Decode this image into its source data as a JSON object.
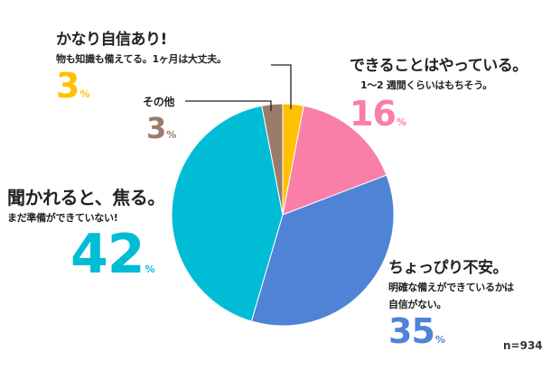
{
  "chart_data": {
    "type": "pie",
    "title": "",
    "slices": [
      {
        "key": "confident",
        "value": 3,
        "color": "#ffc000",
        "heading": "かなり自信あり!",
        "note": "物も知識も備えてる。1ヶ月は大丈夫。",
        "pct_value": "3",
        "pct_unit": "%"
      },
      {
        "key": "doing",
        "value": 16,
        "color": "#f97fa8",
        "heading": "できることはやっている。",
        "note": "1〜2 週間くらいはもちそう。",
        "pct_value": "16",
        "pct_unit": "%"
      },
      {
        "key": "slightly_worried",
        "value": 35,
        "color": "#4f83d6",
        "heading": "ちょっぴり不安。",
        "note": "明確な備えができているかは",
        "note2": "自信がない。",
        "pct_value": "35",
        "pct_unit": "%"
      },
      {
        "key": "flustered",
        "value": 42,
        "color": "#00bcd4",
        "heading": "聞かれると、焦る。",
        "note": "まだ準備ができていない!",
        "pct_value": "42",
        "pct_unit": "%"
      },
      {
        "key": "other",
        "value": 3,
        "color": "#9b7b6a",
        "heading": "その他",
        "pct_value": "3",
        "pct_unit": "%"
      }
    ],
    "sample_size": "n=934"
  }
}
